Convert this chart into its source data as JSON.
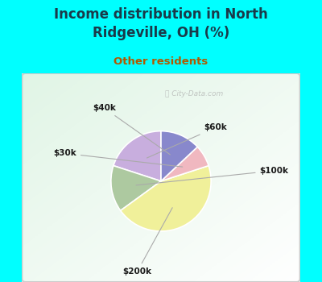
{
  "title": "Income distribution in North\nRidgeville, OH (%)",
  "subtitle": "Other residents",
  "title_color": "#1a3a4a",
  "subtitle_color": "#b05a00",
  "background_color": "#00ffff",
  "labels": [
    "$60k",
    "$100k",
    "$200k",
    "$30k",
    "$40k"
  ],
  "sizes": [
    20,
    15,
    45,
    7,
    13
  ],
  "colors": [
    "#c8aede",
    "#adc9a0",
    "#f0f09a",
    "#f0b8c0",
    "#8888cc"
  ],
  "startangle": 90,
  "watermark": "ⓘ City-Data.com"
}
